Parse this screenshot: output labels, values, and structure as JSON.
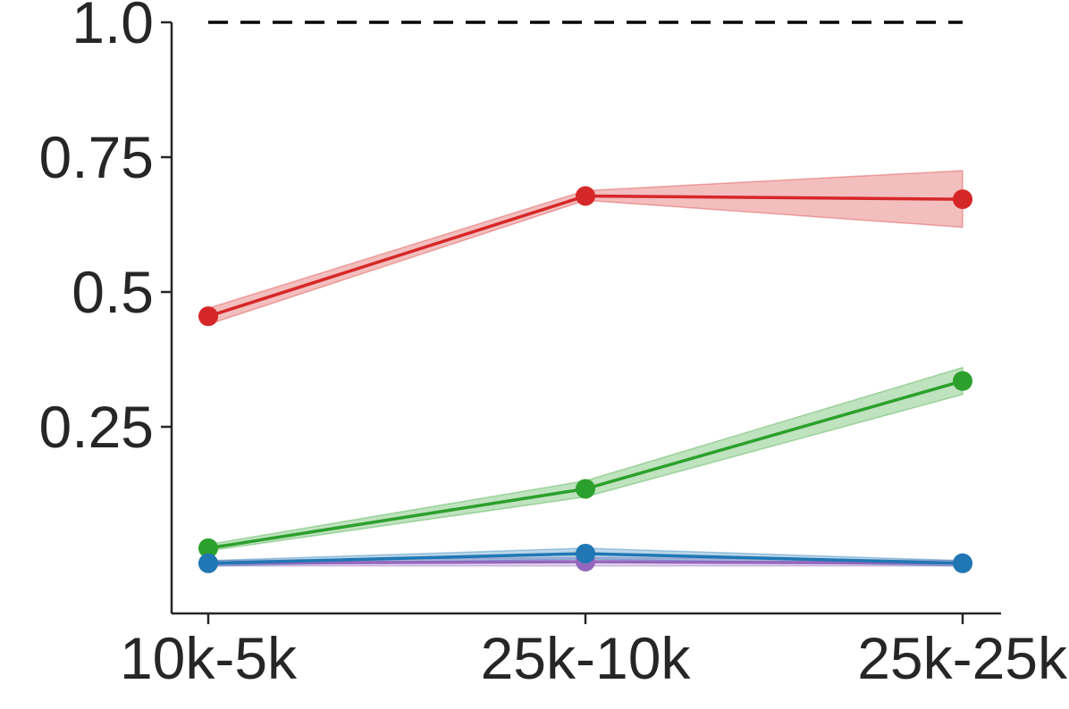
{
  "chart_data": {
    "type": "line",
    "categories": [
      "10k-5k",
      "25k-10k",
      "25k-25k"
    ],
    "yticks": [
      {
        "value": 1.0,
        "label": "1.0"
      },
      {
        "value": 0.75,
        "label": "0.75"
      },
      {
        "value": 0.5,
        "label": "0.5"
      },
      {
        "value": 0.25,
        "label": "0.25"
      }
    ],
    "ylim": [
      -0.1,
      1.0
    ],
    "reference_line": {
      "value": 1.0,
      "style": "dashed",
      "color": "#000000"
    },
    "grid": false,
    "series": [
      {
        "color": "#d62728",
        "values": [
          0.455,
          0.678,
          0.672
        ],
        "lower": [
          0.44,
          0.67,
          0.62
        ],
        "upper": [
          0.47,
          0.688,
          0.725
        ]
      },
      {
        "color": "#2ca02c",
        "values": [
          0.025,
          0.135,
          0.335
        ],
        "lower": [
          0.02,
          0.12,
          0.31
        ],
        "upper": [
          0.032,
          0.15,
          0.36
        ]
      },
      {
        "color": "#9467bd",
        "values": [
          -0.003,
          0.0,
          -0.003
        ],
        "lower": [
          -0.008,
          -0.008,
          -0.008
        ],
        "upper": [
          0.002,
          0.008,
          0.002
        ]
      },
      {
        "color": "#1f77b4",
        "values": [
          -0.003,
          0.015,
          -0.003
        ],
        "lower": [
          -0.008,
          0.005,
          -0.008
        ],
        "upper": [
          0.002,
          0.025,
          0.002
        ]
      }
    ]
  }
}
